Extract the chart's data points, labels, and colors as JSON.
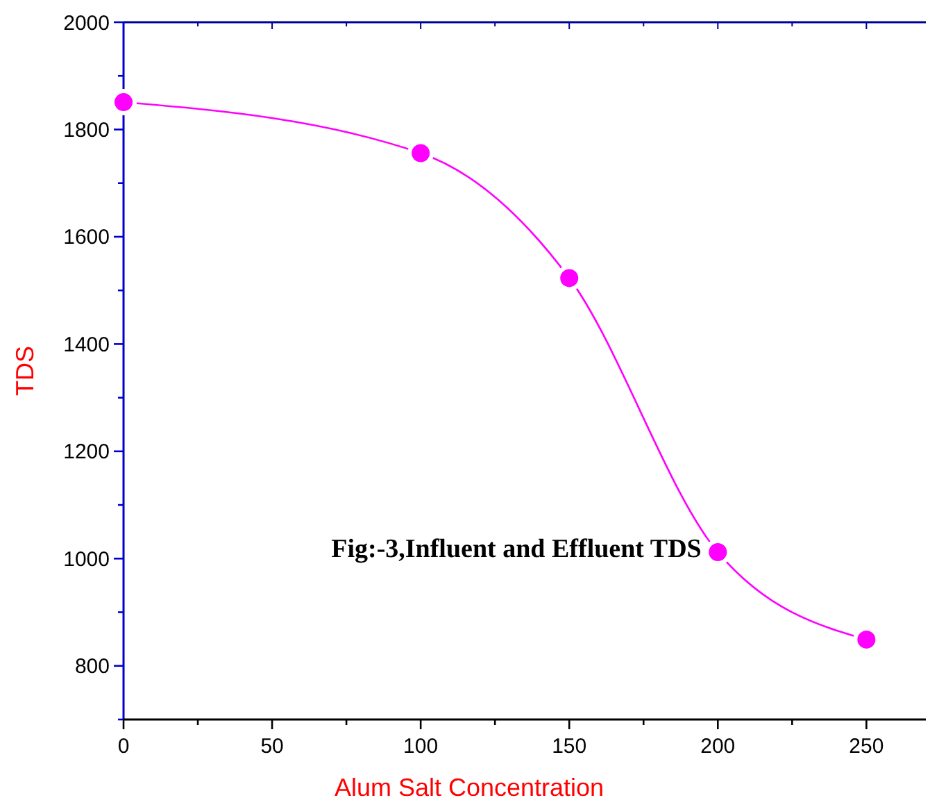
{
  "chart_data": {
    "type": "line",
    "xlabel": "Alum Salt Concentration",
    "ylabel": "TDS",
    "annotations": [
      "Fig:-3,Influent and Effluent TDS"
    ],
    "x": [
      0,
      100,
      150,
      200,
      250
    ],
    "series": [
      {
        "color": "#ff00ff",
        "values": [
          1851,
          1756,
          1523,
          1012,
          849
        ]
      }
    ],
    "marker": "circle",
    "line_style": "solid",
    "grid": false,
    "xlim": [
      0,
      270
    ],
    "xticks": [
      0,
      {
        "value": 25,
        "label": null
      },
      50,
      {
        "value": 75,
        "label": null
      },
      100,
      {
        "value": 125,
        "label": null
      },
      150,
      {
        "value": 175,
        "label": null
      },
      200,
      {
        "value": 225,
        "label": null
      },
      250
    ],
    "ylim": [
      700,
      2000
    ],
    "yticks": [
      {
        "value": 700,
        "label": null
      },
      800,
      {
        "value": 900,
        "label": null
      },
      1000,
      {
        "value": 1100,
        "label": null
      },
      1200,
      {
        "value": 1300,
        "label": null
      },
      1400,
      {
        "value": 1500,
        "label": null
      },
      1600,
      {
        "value": 1700,
        "label": null
      },
      1800,
      {
        "value": 1900,
        "label": null
      },
      2000
    ]
  }
}
